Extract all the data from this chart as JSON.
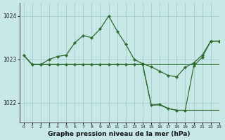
{
  "title": "Graphe pression niveau de la mer (hPa)",
  "bg": "#c8e8e8",
  "grid_color": "#a8d0d0",
  "lc": "#2d6b2d",
  "xlim": [
    -0.5,
    23
  ],
  "ylim": [
    1021.55,
    1024.3
  ],
  "yticks": [
    1022,
    1023,
    1024
  ],
  "xticks": [
    0,
    1,
    2,
    3,
    4,
    5,
    6,
    7,
    8,
    9,
    10,
    11,
    12,
    13,
    14,
    15,
    16,
    17,
    18,
    19,
    20,
    21,
    22,
    23
  ],
  "s1_x": [
    0,
    1,
    2,
    3,
    4,
    5,
    6,
    7,
    8,
    9,
    10,
    11,
    12,
    13,
    14,
    15,
    16,
    17,
    18,
    19,
    20,
    21,
    22,
    23
  ],
  "s1_y": [
    1023.1,
    1022.88,
    1022.88,
    1023.0,
    1023.07,
    1023.1,
    1023.38,
    1023.55,
    1023.5,
    1023.7,
    1024.0,
    1023.65,
    1023.35,
    1023.0,
    1022.9,
    1022.83,
    1022.73,
    1022.63,
    1022.6,
    1022.82,
    1022.92,
    1023.1,
    1023.42,
    1023.42
  ],
  "s2_x": [
    0,
    1,
    2,
    3,
    4,
    5,
    6,
    7,
    8,
    9,
    10,
    14,
    19,
    23
  ],
  "s2_y": [
    1023.1,
    1022.88,
    1022.88,
    1022.88,
    1022.88,
    1022.88,
    1022.88,
    1022.88,
    1022.88,
    1022.88,
    1022.88,
    1022.88,
    1022.88,
    1022.88
  ],
  "s3_x": [
    1,
    2,
    3,
    4,
    5,
    6,
    7,
    8,
    9,
    10,
    11,
    12,
    13,
    14,
    15,
    16,
    17,
    18,
    19,
    20,
    21,
    22,
    23
  ],
  "s3_y": [
    1022.88,
    1022.88,
    1022.88,
    1022.88,
    1022.88,
    1022.88,
    1022.88,
    1022.88,
    1022.88,
    1022.88,
    1022.88,
    1022.88,
    1022.88,
    1022.88,
    1021.95,
    1021.97,
    1021.87,
    1021.83,
    1021.83,
    1022.85,
    1023.05,
    1023.42,
    1023.42
  ],
  "s4_x": [
    0,
    1,
    2,
    3,
    4,
    5,
    6,
    7,
    8,
    9,
    10,
    11,
    12,
    13,
    14,
    15,
    16,
    17,
    18,
    19,
    20,
    21,
    22,
    23
  ],
  "s4_y": [
    1023.1,
    1022.88,
    1022.88,
    1022.88,
    1022.88,
    1022.88,
    1022.88,
    1022.88,
    1022.88,
    1022.88,
    1022.88,
    1022.88,
    1022.88,
    1022.88,
    1022.88,
    1021.95,
    1021.95,
    1021.87,
    1021.83,
    1021.83,
    1021.83,
    1021.83,
    1021.83,
    1021.83
  ]
}
